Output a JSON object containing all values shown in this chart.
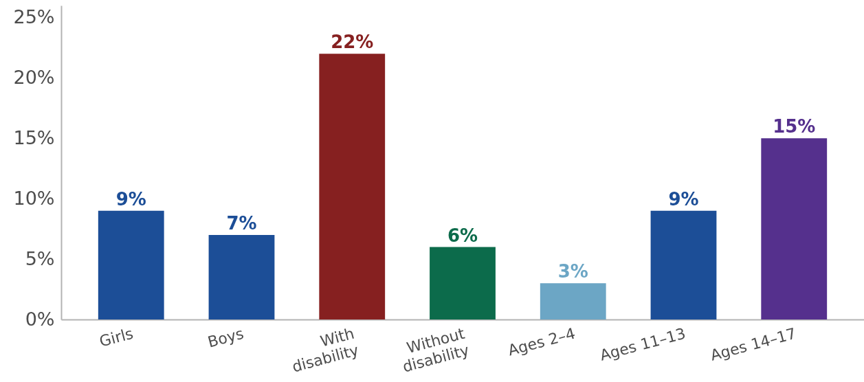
{
  "chart_data": {
    "type": "bar",
    "categories": [
      "Girls",
      "Boys",
      "With\ndisability",
      "Without\ndisability",
      "Ages 2–4",
      "Ages 11–13",
      "Ages 14–17"
    ],
    "values": [
      9,
      7,
      22,
      6,
      3,
      9,
      15
    ],
    "colors": [
      "#1c4e97",
      "#1c4e97",
      "#862020",
      "#0c6b4b",
      "#6ca6c5",
      "#1c4e97",
      "#55308d"
    ],
    "value_labels": [
      "9%",
      "7%",
      "22%",
      "6%",
      "3%",
      "9%",
      "15%"
    ],
    "ylim": [
      0,
      26
    ],
    "yticks": [
      {
        "value": 0,
        "label": "0%"
      },
      {
        "value": 5,
        "label": "5%"
      },
      {
        "value": 10,
        "label": "10%"
      },
      {
        "value": 15,
        "label": "15%"
      },
      {
        "value": 20,
        "label": "20%"
      },
      {
        "value": 25,
        "label": "25%"
      }
    ]
  }
}
